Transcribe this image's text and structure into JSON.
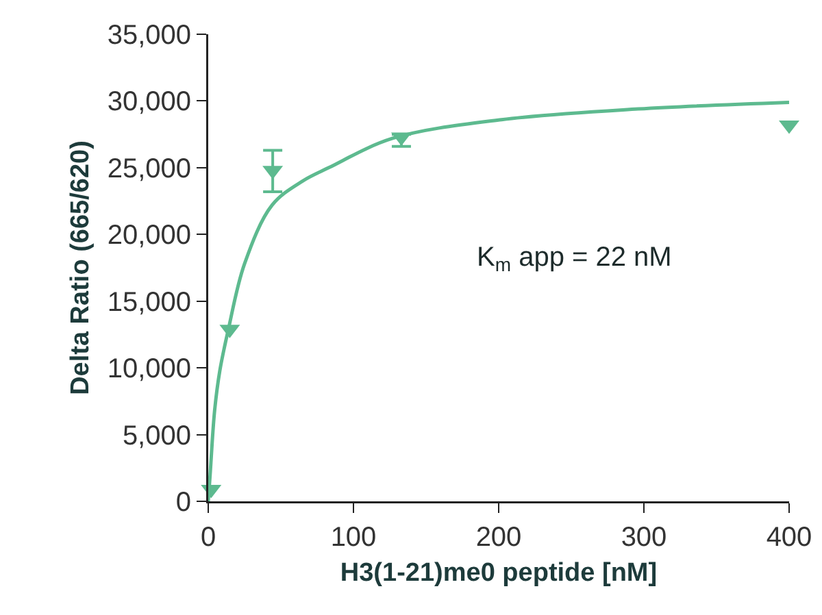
{
  "chart_data": {
    "type": "scatter",
    "xlabel": "H3(1-21)me0 peptide [nM]",
    "ylabel": "Delta Ratio (665/620)",
    "annotations": [
      "K$_{m}$ app = 22 nM"
    ],
    "xlim": [
      0,
      400
    ],
    "xticks": [
      0,
      100,
      200,
      300,
      400
    ],
    "ylim": [
      0,
      35000
    ],
    "yticks": [
      {
        "value": 0,
        "label": "0"
      },
      {
        "value": 5000,
        "label": "5,000"
      },
      {
        "value": 10000,
        "label": "10,000"
      },
      {
        "value": 15000,
        "label": "15,000"
      },
      {
        "value": 20000,
        "label": "20,000"
      },
      {
        "value": 25000,
        "label": "25,000"
      },
      {
        "value": 30000,
        "label": "30,000"
      },
      {
        "value": 35000,
        "label": "35,000"
      }
    ],
    "grid": false,
    "marker": "triangle",
    "series": [
      {
        "type": "line",
        "color": "#5dba8f",
        "marker": "none",
        "x": [
          0,
          1.3,
          4.4,
          8,
          13.9,
          25,
          44,
          65,
          83,
          127,
          202,
          296,
          400
        ],
        "values": [
          0,
          2000,
          6800,
          9800,
          12900,
          17800,
          22200,
          24000,
          25000,
          27200,
          28600,
          29400,
          29900
        ]
      },
      {
        "color": "#5dba8f",
        "x": [
          2,
          14.8,
          44.4,
          133,
          400
        ],
        "values": [
          900,
          12900,
          24800,
          27300,
          28200
        ],
        "errors": [
          null,
          null,
          [
            23200,
            26300
          ],
          [
            26600,
            27500
          ],
          null
        ]
      }
    ]
  }
}
